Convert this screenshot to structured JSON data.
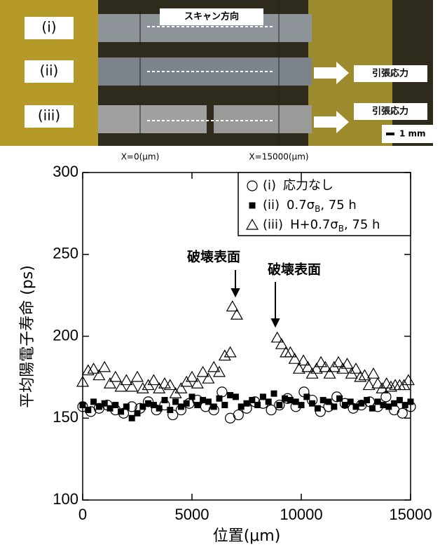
{
  "photo": {
    "labels": [
      "(i)",
      "(ii)",
      "(iii)"
    ],
    "scan_direction": "スキャン方向",
    "stress_labels": [
      "引張応力",
      "引張応力"
    ],
    "scale_bar": "1 mm",
    "x_start": "X=0(μm)",
    "x_end": "X=15000(μm)"
  },
  "chart_data": {
    "type": "scatter",
    "x_label": "位置(μm)",
    "y_label": "平均陽電子寿命 (ps)",
    "xlim": [
      0,
      15000
    ],
    "xticks": [
      0,
      5000,
      10000,
      15000
    ],
    "ylim": [
      100,
      300
    ],
    "yticks": [
      100,
      150,
      200,
      250,
      300
    ],
    "annotations": [
      "破壊表面",
      "破壊表面"
    ],
    "series": [
      {
        "name": "(i)",
        "desc": "応力なし",
        "marker": "circle",
        "color": "#000000",
        "x": [
          0,
          375,
          750,
          1125,
          1500,
          1875,
          2250,
          2625,
          3000,
          3375,
          3750,
          4125,
          4500,
          4875,
          5250,
          5625,
          6000,
          6375,
          6750,
          7125,
          7500,
          7875,
          8250,
          8625,
          9000,
          9375,
          9750,
          10125,
          10500,
          10875,
          11250,
          11625,
          12000,
          12375,
          12750,
          13125,
          13500,
          13875,
          14250,
          14625,
          15000
        ],
        "values": [
          157,
          154,
          156,
          158,
          155,
          153,
          157,
          156,
          160,
          155,
          158,
          152,
          155,
          159,
          161,
          157,
          155,
          166,
          150,
          152,
          156,
          160,
          159,
          155,
          158,
          162,
          157,
          166,
          161,
          154,
          157,
          163,
          159,
          156,
          158,
          160,
          157,
          163,
          155,
          153,
          157
        ]
      },
      {
        "name": "(ii)",
        "desc": "0.7σ",
        "desc_sub": "B",
        "desc_end": ", 75 h",
        "marker": "square",
        "color": "#000000",
        "x": [
          0,
          250,
          500,
          750,
          1000,
          1250,
          1500,
          1750,
          2000,
          2250,
          2500,
          2750,
          3000,
          3250,
          3500,
          3750,
          4000,
          4250,
          4500,
          4750,
          5000,
          5250,
          5500,
          5750,
          6000,
          6250,
          6500,
          6750,
          7000,
          7250,
          7500,
          7750,
          8000,
          8250,
          8500,
          8750,
          9000,
          9250,
          9500,
          9750,
          10000,
          10250,
          10500,
          10750,
          11000,
          11250,
          11500,
          11750,
          12000,
          12250,
          12500,
          12750,
          13000,
          13250,
          13500,
          13750,
          14000,
          14250,
          14500,
          14750,
          15000
        ],
        "values": [
          158,
          155,
          160,
          157,
          159,
          156,
          158,
          154,
          157,
          150,
          153,
          157,
          159,
          158,
          156,
          161,
          155,
          160,
          157,
          159,
          163,
          158,
          161,
          160,
          157,
          162,
          158,
          164,
          163,
          157,
          159,
          161,
          158,
          163,
          160,
          165,
          158,
          162,
          161,
          160,
          158,
          163,
          159,
          156,
          161,
          160,
          157,
          162,
          158,
          160,
          157,
          159,
          161,
          156,
          160,
          158,
          157,
          159,
          161,
          158,
          160
        ]
      },
      {
        "name": "(iii)",
        "desc": "H+0.7σ",
        "desc_sub": "B",
        "desc_end": ", 75 h",
        "marker": "triangle",
        "color": "#000000",
        "x": [
          0,
          250,
          500,
          750,
          1000,
          1250,
          1500,
          1750,
          2000,
          2250,
          2500,
          2750,
          3000,
          3250,
          3500,
          3750,
          4000,
          4250,
          4500,
          4750,
          5000,
          5250,
          5500,
          5750,
          6000,
          6250,
          6500,
          6750,
          6850,
          7050,
          8900,
          9100,
          9300,
          9500,
          9700,
          9900,
          10100,
          10300,
          10500,
          10700,
          10900,
          11100,
          11300,
          11500,
          11700,
          11900,
          12100,
          12300,
          12500,
          12700,
          12900,
          13100,
          13300,
          13500,
          13700,
          13900,
          14100,
          14300,
          14500,
          14700,
          14900
        ],
        "values": [
          172,
          179,
          180,
          176,
          181,
          171,
          175,
          169,
          173,
          169,
          175,
          168,
          170,
          173,
          168,
          171,
          170,
          165,
          168,
          172,
          175,
          171,
          178,
          174,
          181,
          178,
          188,
          190,
          218,
          213,
          199,
          195,
          190,
          190,
          186,
          180,
          185,
          181,
          177,
          180,
          184,
          181,
          177,
          181,
          184,
          180,
          183,
          177,
          180,
          175,
          176,
          170,
          177,
          171,
          168,
          171,
          169,
          170,
          170,
          170,
          173
        ]
      }
    ]
  }
}
